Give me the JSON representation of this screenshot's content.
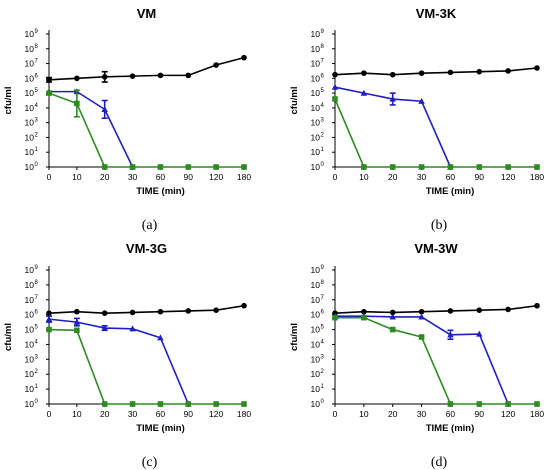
{
  "chart_data": [
    {
      "type": "line",
      "title": "VM",
      "caption": "(a)",
      "xlabel": "TIME (min)",
      "ylabel": "cfu/ml",
      "x_ticks": [
        0,
        10,
        20,
        30,
        60,
        90,
        120,
        180
      ],
      "y_ticks": [
        "10",
        "10",
        "10",
        "10",
        "10",
        "10",
        "10",
        "10",
        "10",
        "10"
      ],
      "y_exponents": [
        "0",
        "1",
        "2",
        "3",
        "4",
        "5",
        "6",
        "7",
        "8",
        "9"
      ],
      "y_scale": "log10",
      "ylim": [
        0,
        9
      ],
      "series": [
        {
          "color": "#000000",
          "marker": "circle",
          "x": [
            0,
            10,
            20,
            30,
            60,
            90,
            120,
            180
          ],
          "y": [
            5.9,
            6.0,
            6.1,
            6.15,
            6.2,
            6.2,
            6.9,
            7.4
          ],
          "err": [
            0.15,
            0,
            0.35,
            0,
            0,
            0,
            0,
            0
          ]
        },
        {
          "color": "#1f1fbf",
          "marker": "triangle",
          "x": [
            0,
            10,
            20,
            30
          ],
          "y": [
            5.1,
            5.1,
            3.9,
            0
          ],
          "err": [
            0,
            0,
            0.6,
            0
          ]
        },
        {
          "color": "#2e8b22",
          "marker": "square",
          "x": [
            0,
            10,
            20,
            30,
            60,
            90,
            120,
            180
          ],
          "y": [
            5.0,
            4.3,
            0,
            0,
            0,
            0,
            0,
            0
          ],
          "err": [
            0,
            0.9,
            0,
            0,
            0,
            0,
            0,
            0
          ]
        }
      ]
    },
    {
      "type": "line",
      "title": "VM-3K",
      "caption": "(b)",
      "xlabel": "TIME (min)",
      "ylabel": "cfu/ml",
      "x_ticks": [
        0,
        10,
        20,
        30,
        60,
        90,
        120,
        180
      ],
      "y_ticks": [
        "10",
        "10",
        "10",
        "10",
        "10",
        "10",
        "10",
        "10",
        "10",
        "10"
      ],
      "y_exponents": [
        "0",
        "1",
        "2",
        "3",
        "4",
        "5",
        "6",
        "7",
        "8",
        "9"
      ],
      "y_scale": "log10",
      "ylim": [
        0,
        9
      ],
      "series": [
        {
          "color": "#000000",
          "marker": "circle",
          "x": [
            0,
            10,
            20,
            30,
            60,
            90,
            120,
            180
          ],
          "y": [
            6.25,
            6.35,
            6.25,
            6.35,
            6.4,
            6.45,
            6.5,
            6.7
          ],
          "err": [
            0,
            0,
            0,
            0,
            0,
            0,
            0,
            0
          ]
        },
        {
          "color": "#1f1fbf",
          "marker": "triangle",
          "x": [
            0,
            10,
            20,
            30,
            60
          ],
          "y": [
            5.4,
            5.0,
            4.6,
            4.45,
            0
          ],
          "err": [
            0,
            0,
            0.4,
            0,
            0
          ]
        },
        {
          "color": "#2e8b22",
          "marker": "square",
          "x": [
            0,
            10,
            20,
            30,
            60,
            90,
            120,
            180
          ],
          "y": [
            4.6,
            0,
            0,
            0,
            0,
            0,
            0,
            0
          ],
          "err": [
            0,
            0,
            0,
            0,
            0,
            0,
            0,
            0
          ]
        }
      ]
    },
    {
      "type": "line",
      "title": "VM-3G",
      "caption": "(c)",
      "xlabel": "TIME (min)",
      "ylabel": "cfu/ml",
      "x_ticks": [
        0,
        10,
        20,
        30,
        60,
        90,
        120,
        180
      ],
      "y_ticks": [
        "10",
        "10",
        "10",
        "10",
        "10",
        "10",
        "10",
        "10",
        "10",
        "10"
      ],
      "y_exponents": [
        "0",
        "1",
        "2",
        "3",
        "4",
        "5",
        "6",
        "7",
        "8",
        "9"
      ],
      "y_scale": "log10",
      "ylim": [
        0,
        9
      ],
      "series": [
        {
          "color": "#000000",
          "marker": "circle",
          "x": [
            0,
            10,
            20,
            30,
            60,
            90,
            120,
            180
          ],
          "y": [
            6.1,
            6.2,
            6.1,
            6.15,
            6.2,
            6.25,
            6.3,
            6.6
          ],
          "err": [
            0,
            0,
            0,
            0,
            0,
            0,
            0,
            0
          ]
        },
        {
          "color": "#1f1fbf",
          "marker": "triangle",
          "x": [
            0,
            10,
            20,
            30,
            60,
            90
          ],
          "y": [
            5.7,
            5.5,
            5.1,
            5.05,
            4.45,
            0
          ],
          "err": [
            0.2,
            0.25,
            0.15,
            0,
            0,
            0
          ]
        },
        {
          "color": "#2e8b22",
          "marker": "square",
          "x": [
            0,
            10,
            20,
            30,
            60,
            90,
            120,
            180
          ],
          "y": [
            5.0,
            4.95,
            0,
            0,
            0,
            0,
            0,
            0
          ],
          "err": [
            0,
            0,
            0,
            0,
            0,
            0,
            0,
            0
          ]
        }
      ]
    },
    {
      "type": "line",
      "title": "VM-3W",
      "caption": "(d)",
      "xlabel": "TIME (min)",
      "ylabel": "cfu/ml",
      "x_ticks": [
        0,
        10,
        20,
        30,
        60,
        90,
        120,
        180
      ],
      "y_ticks": [
        "10",
        "10",
        "10",
        "10",
        "10",
        "10",
        "10",
        "10",
        "10",
        "10"
      ],
      "y_exponents": [
        "0",
        "1",
        "2",
        "3",
        "4",
        "5",
        "6",
        "7",
        "8",
        "9"
      ],
      "y_scale": "log10",
      "ylim": [
        0,
        9
      ],
      "series": [
        {
          "color": "#000000",
          "marker": "circle",
          "x": [
            0,
            10,
            20,
            30,
            60,
            90,
            120,
            180
          ],
          "y": [
            6.1,
            6.2,
            6.15,
            6.2,
            6.25,
            6.3,
            6.35,
            6.6
          ],
          "err": [
            0,
            0,
            0,
            0,
            0,
            0,
            0,
            0
          ]
        },
        {
          "color": "#1f1fbf",
          "marker": "triangle",
          "x": [
            0,
            10,
            20,
            30,
            60,
            90,
            120
          ],
          "y": [
            5.9,
            5.9,
            5.85,
            5.85,
            4.65,
            4.7,
            0
          ],
          "err": [
            0,
            0,
            0,
            0,
            0.3,
            0,
            0
          ]
        },
        {
          "color": "#2e8b22",
          "marker": "square",
          "x": [
            0,
            10,
            20,
            30,
            60,
            90,
            120,
            180
          ],
          "y": [
            5.8,
            5.8,
            5.0,
            4.5,
            0,
            0,
            0,
            0
          ],
          "err": [
            0,
            0,
            0,
            0,
            0,
            0,
            0,
            0
          ]
        }
      ]
    }
  ]
}
